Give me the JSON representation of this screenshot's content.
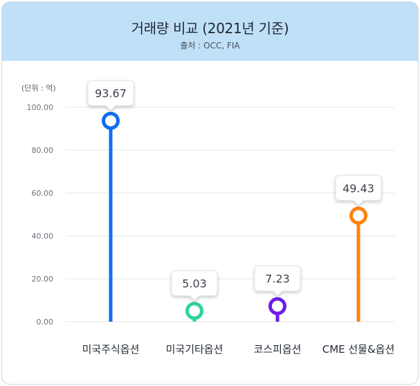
{
  "header": {
    "title": "거래량 비교 (2021년 기준)",
    "source": "출처 : OCC, FIA"
  },
  "unit_label": "(단위 : 억)",
  "chart_data": {
    "type": "lollipop",
    "title": "거래량 비교 (2021년 기준)",
    "subtitle": "출처 : OCC, FIA",
    "unit": "(단위 : 억)",
    "categories": [
      "미국주식옵션",
      "미국기타옵션",
      "코스피옵션",
      "CME 선물&옵션"
    ],
    "values": [
      93.67,
      5.03,
      7.23,
      49.43
    ],
    "value_labels": [
      "93.67",
      "5.03",
      "7.23",
      "49.43"
    ],
    "colors": [
      "#0d6ef2",
      "#2fd39a",
      "#6b1ee6",
      "#ff820d"
    ],
    "yticks": [
      0,
      20,
      40,
      60,
      80,
      100
    ],
    "ytick_labels": [
      "0.00",
      "20.00",
      "40.00",
      "60.00",
      "80.00",
      "100.00"
    ],
    "ylim": [
      0,
      100
    ],
    "grid": true,
    "gridline_color": "#e3e6ea"
  }
}
